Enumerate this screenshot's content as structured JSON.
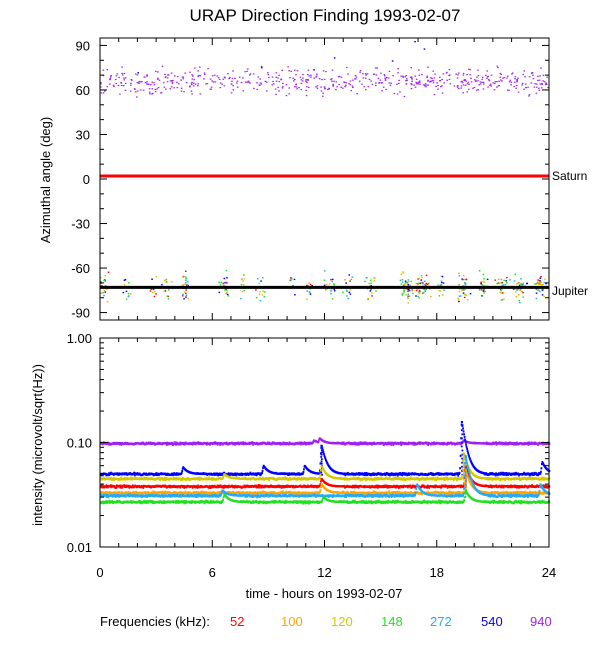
{
  "title": "URAP Direction Finding  1993-02-07",
  "colors": {
    "52": "#ff0000",
    "100": "#ffa500",
    "120": "#d4c800",
    "148": "#22e022",
    "272": "#22aaff",
    "540": "#0000ff",
    "940": "#a020f0",
    "saturn_line": "#ff0000",
    "jupiter_line": "#000000"
  },
  "chart_data": [
    {
      "type": "scatter",
      "name": "azimuth-panel",
      "title": "URAP Direction Finding  1993-02-07",
      "ylabel": "Azimuthal angle (deg)",
      "xlim": [
        0,
        24
      ],
      "ylim": [
        -95,
        95
      ],
      "yticks": [
        90,
        60,
        30,
        0,
        -30,
        -60,
        -90
      ],
      "ytick_labels": [
        "90",
        "60",
        "30",
        "0",
        "-30",
        "-60",
        "-90"
      ],
      "reference_lines": [
        {
          "label": "Saturn",
          "value": 2,
          "color": "#ff0000"
        },
        {
          "label": "Jupiter",
          "value": -73,
          "color": "#000000"
        }
      ],
      "clusters": [
        {
          "frequency": "940",
          "band": [
            52,
            80
          ],
          "center": 66,
          "coverage": "continuous 0-24 h"
        },
        {
          "frequency": "mixed",
          "band": [
            -90,
            -55
          ],
          "center": -72,
          "coverage": "bursts near 4.5, 6.5, 8.5, 12, 14.5, 16-17.5, 19-20.5, 21.5-24 h"
        }
      ]
    },
    {
      "type": "line",
      "name": "intensity-panel",
      "xlabel": "time - hours on 1993-02-07",
      "ylabel": "intensity (microvolt/sqrt(Hz))",
      "yscale": "log",
      "xlim": [
        0,
        24
      ],
      "ylim": [
        0.01,
        1.0
      ],
      "xticks": [
        0,
        6,
        12,
        18,
        24
      ],
      "xtick_labels": [
        "0",
        "6",
        "12",
        "18",
        "24"
      ],
      "yticks": [
        1.0,
        0.1,
        0.01
      ],
      "ytick_labels": [
        "1.00",
        "0.10",
        "0.01"
      ],
      "series": [
        {
          "name": "940",
          "baseline": 0.098,
          "peaks": [
            [
              11.4,
              0.105
            ],
            [
              11.7,
              0.11
            ],
            [
              19.4,
              0.105
            ]
          ]
        },
        {
          "name": "540",
          "baseline": 0.05,
          "peaks": [
            [
              4.4,
              0.058
            ],
            [
              8.7,
              0.06
            ],
            [
              10.9,
              0.06
            ],
            [
              11.8,
              0.095
            ],
            [
              19.3,
              0.16
            ],
            [
              23.6,
              0.065
            ]
          ]
        },
        {
          "name": "120",
          "baseline": 0.045,
          "peaks": [
            [
              6.6,
              0.05
            ],
            [
              11.8,
              0.06
            ],
            [
              19.4,
              0.08
            ]
          ]
        },
        {
          "name": "52",
          "baseline": 0.038,
          "peaks": [
            [
              11.8,
              0.045
            ],
            [
              19.5,
              0.06
            ]
          ]
        },
        {
          "name": "100",
          "baseline": 0.033,
          "peaks": [
            [
              11.8,
              0.04
            ],
            [
              19.5,
              0.055
            ]
          ]
        },
        {
          "name": "272",
          "baseline": 0.031,
          "peaks": [
            [
              6.5,
              0.035
            ],
            [
              16.9,
              0.04
            ],
            [
              19.5,
              0.075
            ],
            [
              23.5,
              0.04
            ]
          ]
        },
        {
          "name": "148",
          "baseline": 0.027,
          "peaks": [
            [
              6.6,
              0.032
            ],
            [
              11.9,
              0.03
            ],
            [
              19.5,
              0.035
            ]
          ]
        }
      ]
    }
  ],
  "legend": {
    "label": "Frequencies (kHz):",
    "items": [
      {
        "text": "52",
        "key": "52"
      },
      {
        "text": "100",
        "key": "100"
      },
      {
        "text": "120",
        "key": "120"
      },
      {
        "text": "148",
        "key": "148"
      },
      {
        "text": "272",
        "key": "272"
      },
      {
        "text": "540",
        "key": "540"
      },
      {
        "text": "940",
        "key": "940"
      }
    ]
  }
}
